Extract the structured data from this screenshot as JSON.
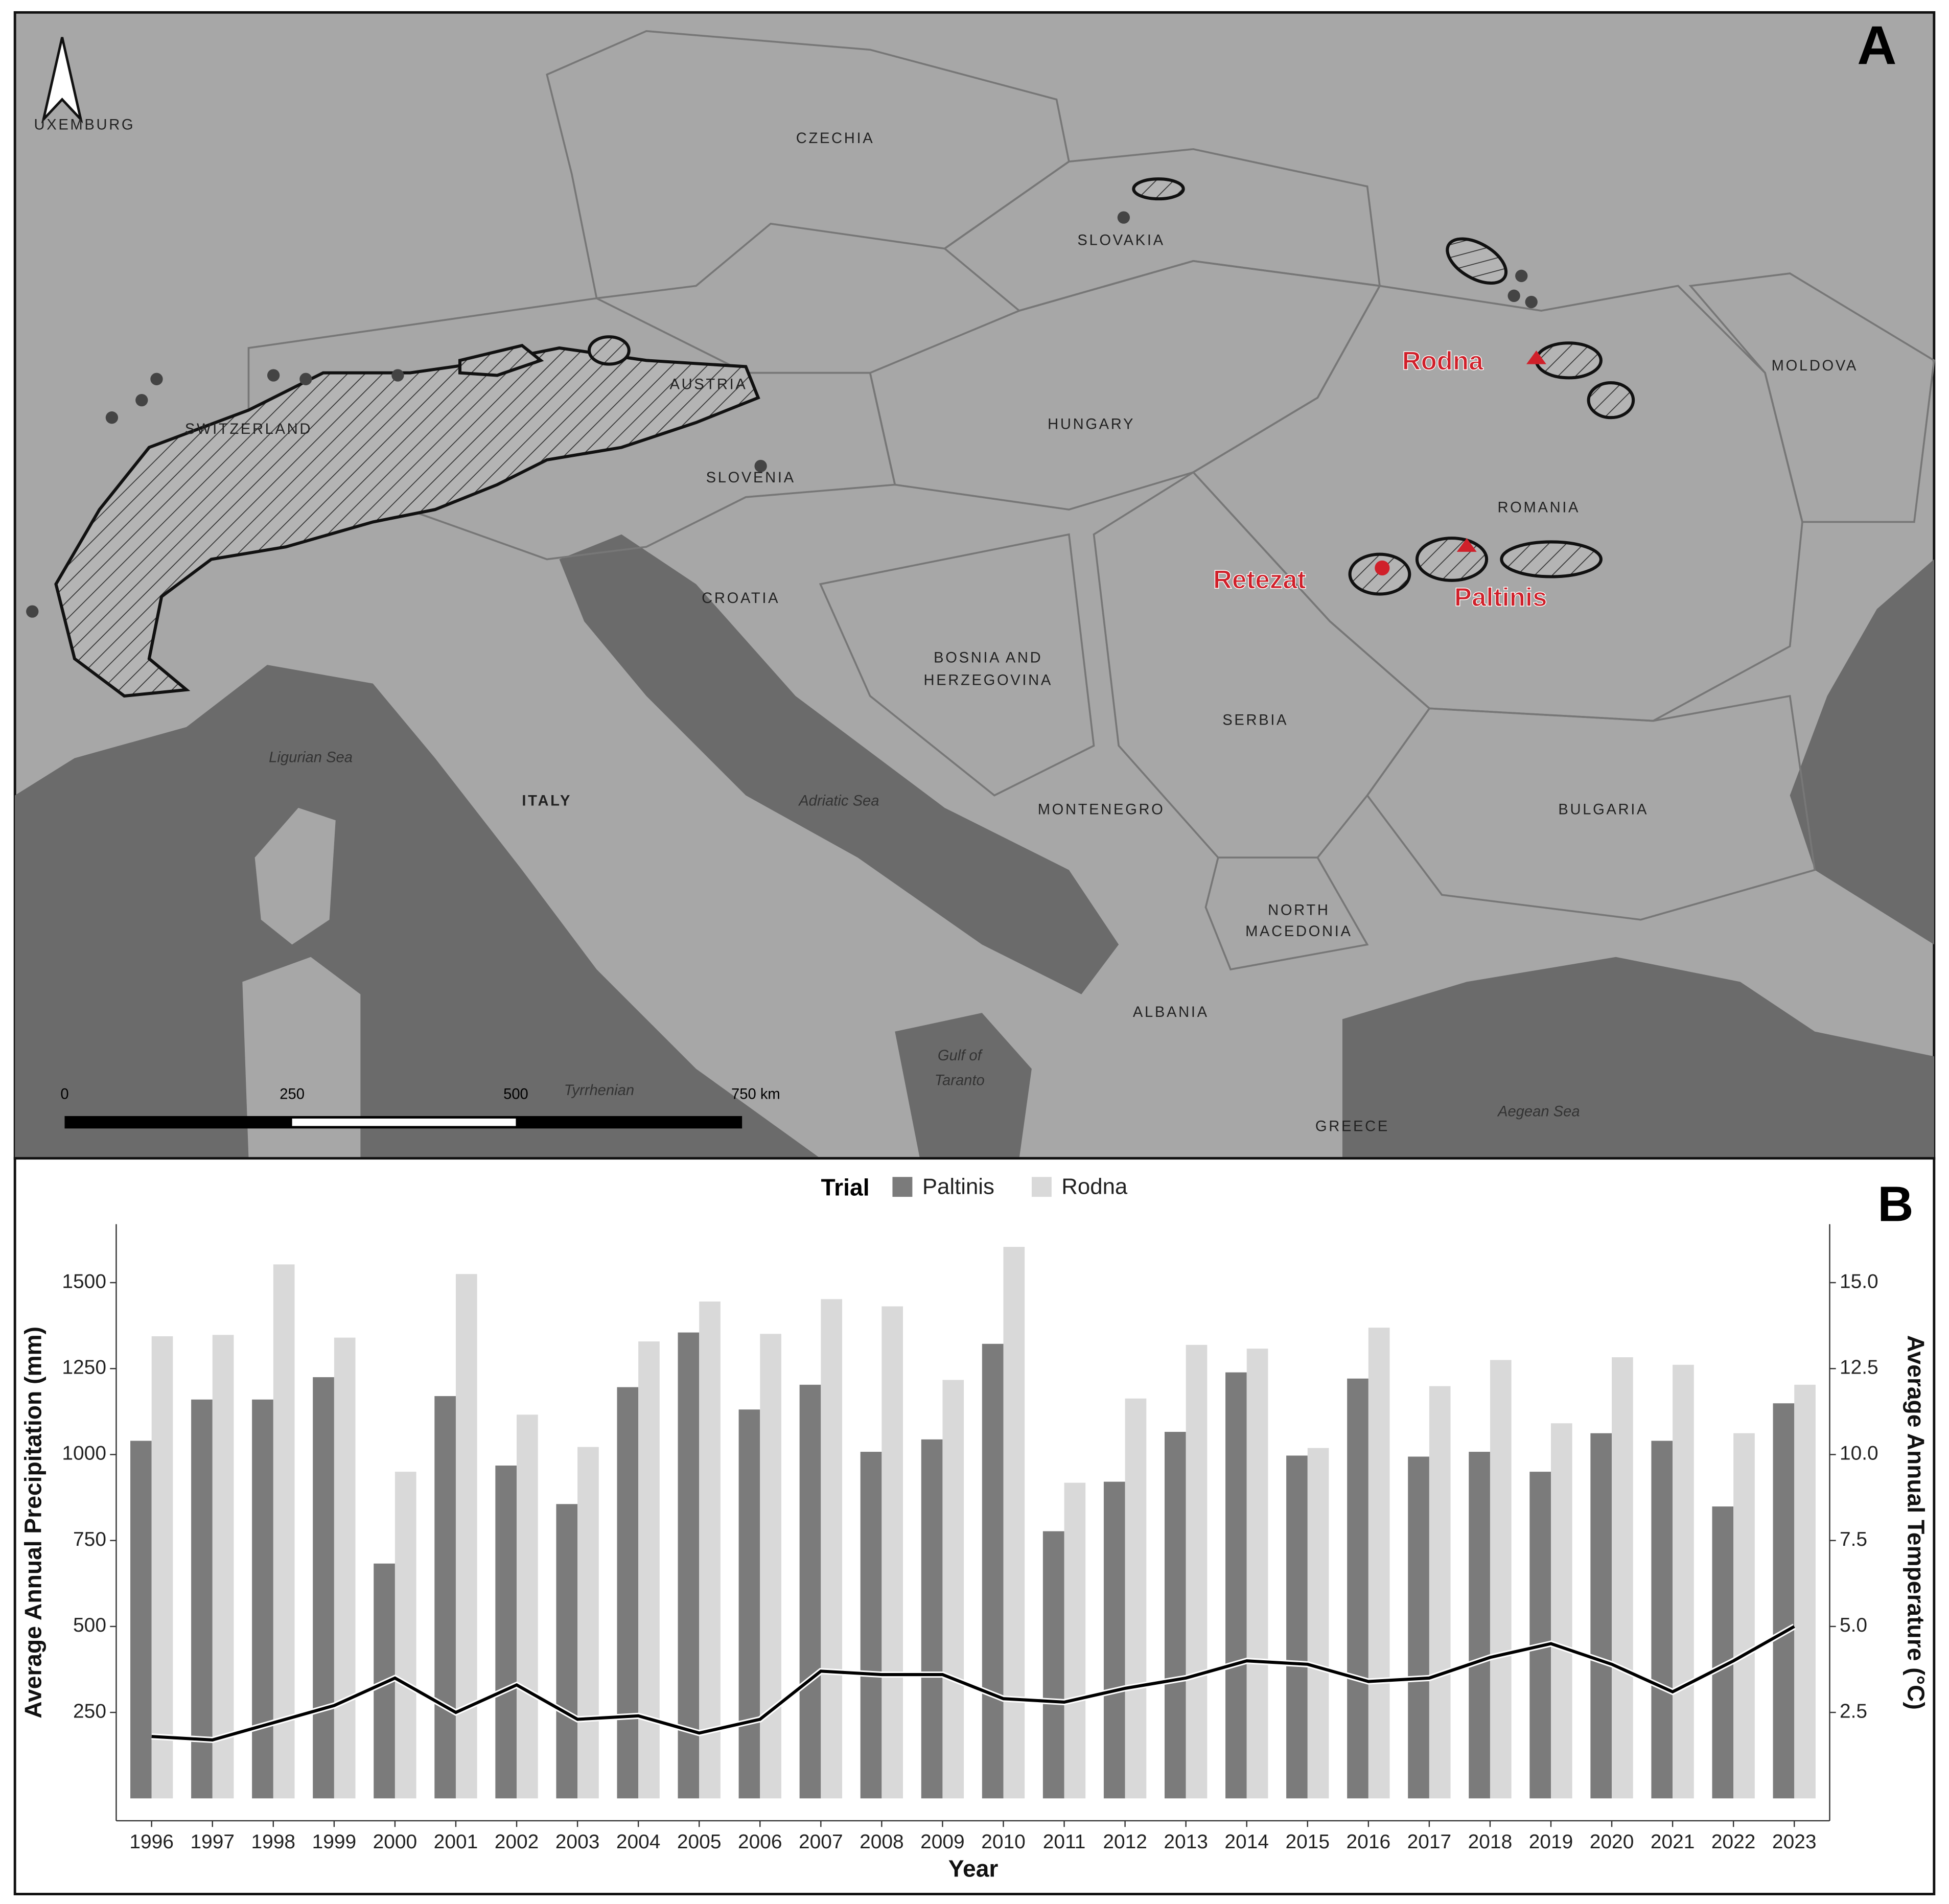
{
  "map": {
    "panel_label": "A",
    "countries": [
      "CZECHIA",
      "SLOVAKIA",
      "AUSTRIA",
      "SWITZERLAND",
      "HUNGARY",
      "MOLDOVA",
      "SLOVENIA",
      "ROMANIA",
      "CROATIA",
      "BOSNIA AND",
      "HERZEGOVINA",
      "SERBIA",
      "ITALY",
      "MONTENEGRO",
      "BULGARIA",
      "NORTH",
      "MACEDONIA",
      "ALBANIA",
      "GREECE",
      "UXEMBURG"
    ],
    "seas": [
      "Ligurian Sea",
      "Adriatic Sea",
      "Tyrrhenian",
      "Gulf of",
      "Taranto",
      "Aegean Sea"
    ],
    "sites": [
      "Rodna",
      "Retezat",
      "Paltinis"
    ],
    "scale": [
      "0",
      "250",
      "500",
      "750 km"
    ]
  },
  "chart_data": {
    "type": "bar",
    "panel_label": "B",
    "legend_title": "Trial",
    "x_label": "Year",
    "y_label": "Average Annual Precipitation (mm)",
    "y2_label": "Average Annual Temperature (°C)",
    "categories": [
      "1996",
      "1997",
      "1998",
      "1999",
      "2000",
      "2001",
      "2002",
      "2003",
      "2004",
      "2005",
      "2006",
      "2007",
      "2008",
      "2009",
      "2010",
      "2011",
      "2012",
      "2013",
      "2014",
      "2015",
      "2016",
      "2017",
      "2018",
      "2019",
      "2020",
      "2021",
      "2022",
      "2023"
    ],
    "series": [
      {
        "name": "Paltinis",
        "color": "#7b7b7b",
        "values": [
          1040,
          1160,
          1160,
          1225,
          683,
          1170,
          968,
          856,
          1196,
          1355,
          1131,
          1203,
          1008,
          1044,
          1322,
          777,
          921,
          1066,
          1239,
          997,
          1221,
          994,
          1008,
          950,
          1062,
          1040,
          849,
          1149
        ]
      },
      {
        "name": "Rodna",
        "color": "#d9d9d9",
        "values": [
          1344,
          1348,
          1553,
          1340,
          950,
          1525,
          1116,
          1022,
          1329,
          1445,
          1351,
          1452,
          1431,
          1217,
          1604,
          918,
          1163,
          1319,
          1308,
          1019,
          1369,
          1199,
          1275,
          1091,
          1283,
          1261,
          1062,
          1203
        ]
      }
    ],
    "temperature": {
      "type": "line",
      "axis": "y2",
      "color": "#000000",
      "values": [
        1.8,
        1.7,
        2.2,
        2.7,
        3.5,
        2.5,
        3.3,
        2.3,
        2.4,
        1.9,
        2.3,
        3.7,
        3.6,
        3.6,
        2.9,
        2.8,
        3.2,
        3.5,
        4.0,
        3.9,
        3.4,
        3.5,
        4.1,
        4.5,
        3.9,
        3.1,
        4.0,
        5.0
      ]
    },
    "ylim": [
      -65,
      1670
    ],
    "yticks": [
      250,
      500,
      750,
      1000,
      1250,
      1500
    ],
    "y2lim": [
      -0.65,
      16.7
    ],
    "y2ticks": [
      2.5,
      {
        "value": 5,
        "label": "5.0"
      },
      7.5,
      {
        "value": 10,
        "label": "10.0"
      },
      12.5,
      {
        "value": 15,
        "label": "15.0"
      }
    ],
    "grid": false
  }
}
